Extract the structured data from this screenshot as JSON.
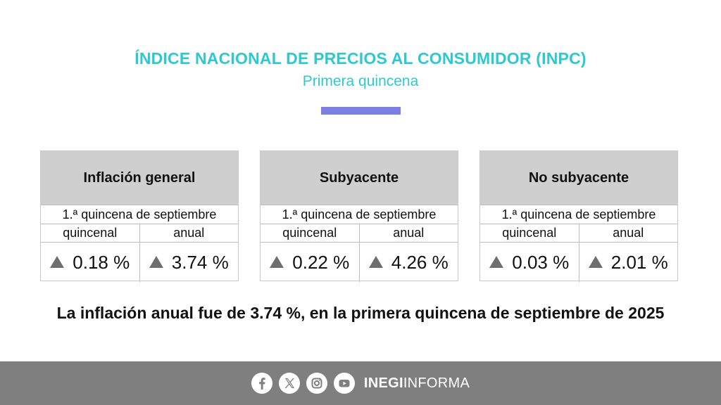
{
  "header": {
    "title": "ÍNDICE NACIONAL DE PRECIOS AL CONSUMIDOR (INPC)",
    "subtitle": "Primera quincena",
    "accent_color": "#7b7fe0",
    "title_color": "#2ec9d0"
  },
  "cards": [
    {
      "title": "Inflación general",
      "period": "1.ª quincena de septiembre",
      "col1_label": "quincenal",
      "col2_label": "anual",
      "col1_value": "0.18 %",
      "col2_value": "3.74 %",
      "col1_trend": "up",
      "col2_trend": "up"
    },
    {
      "title": "Subyacente",
      "period": "1.ª quincena de septiembre",
      "col1_label": "quincenal",
      "col2_label": "anual",
      "col1_value": "0.22 %",
      "col2_value": "4.26 %",
      "col1_trend": "up",
      "col2_trend": "up"
    },
    {
      "title": "No subyacente",
      "period": "1.ª quincena de septiembre",
      "col1_label": "quincenal",
      "col2_label": "anual",
      "col1_value": "0.03 %",
      "col2_value": "2.01 %",
      "col1_trend": "up",
      "col2_trend": "up"
    }
  ],
  "headline": "La inflación anual fue de 3.74 %, en la primera quincena de septiembre de 2025",
  "footer": {
    "social_icons": [
      "facebook-icon",
      "x-icon",
      "instagram-icon",
      "youtube-icon"
    ],
    "brand_bold": "INEGI",
    "brand_light": "INFORMA"
  }
}
